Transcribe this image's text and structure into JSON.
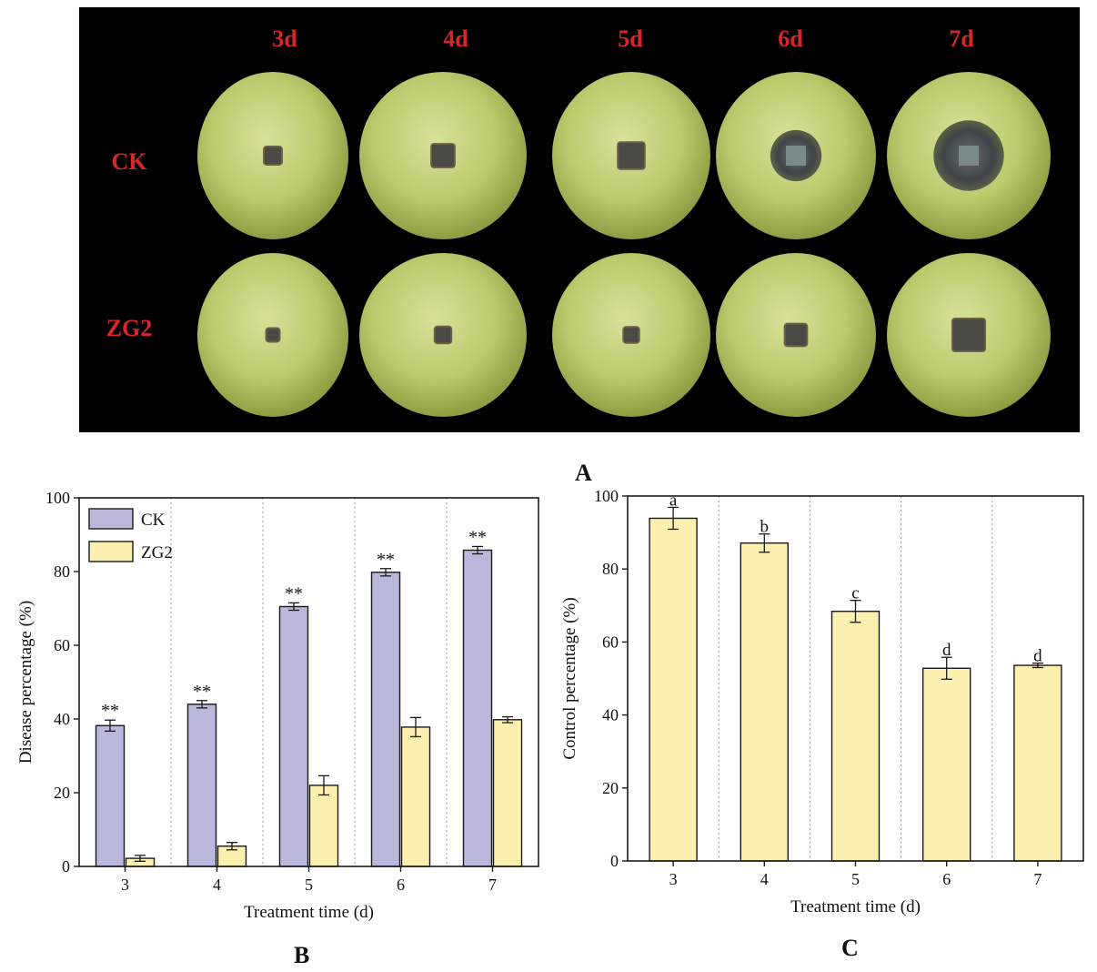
{
  "panel_a": {
    "letter": "A",
    "columns": [
      "3d",
      "4d",
      "5d",
      "6d",
      "7d"
    ],
    "rows": [
      {
        "label": "CK",
        "lesion": [
          0.12,
          0.14,
          0.17,
          0.32,
          0.43
        ]
      },
      {
        "label": "ZG2",
        "lesion": [
          0.09,
          0.1,
          0.1,
          0.14,
          0.2
        ]
      }
    ],
    "label_color": "#d8262b"
  },
  "chart_data": [
    {
      "id": "B",
      "type": "bar",
      "panel_letter": "B",
      "categories": [
        "3",
        "4",
        "5",
        "6",
        "7"
      ],
      "series": [
        {
          "name": "CK",
          "values": [
            38.2,
            44.0,
            70.5,
            79.8,
            85.8
          ],
          "errors": [
            1.5,
            1.0,
            1.0,
            1.0,
            1.0
          ],
          "color": "#b9b7da"
        },
        {
          "name": "ZG2",
          "values": [
            2.2,
            5.5,
            22.0,
            37.8,
            39.8
          ],
          "errors": [
            0.8,
            1.0,
            2.6,
            2.6,
            0.8
          ],
          "color": "#fbf0b0"
        }
      ],
      "annotations": [
        "**",
        "**",
        "**",
        "**",
        "**"
      ],
      "xlabel": "Treatment time (d)",
      "ylabel": "Disease percentage (%)",
      "ylim": [
        0,
        100
      ],
      "yticks": [
        "0",
        "20",
        "40",
        "60",
        "80",
        "100"
      ],
      "legend": "top-left",
      "grid": "vertical dotted separators"
    },
    {
      "id": "C",
      "type": "bar",
      "panel_letter": "C",
      "categories": [
        "3",
        "4",
        "5",
        "6",
        "7"
      ],
      "series": [
        {
          "values": [
            93.9,
            87.1,
            68.4,
            52.8,
            53.6
          ],
          "errors": [
            3.0,
            2.5,
            3.0,
            3.0,
            0.6
          ],
          "color": "#fbf0b0"
        }
      ],
      "annotations": [
        "a",
        "b",
        "c",
        "d",
        "d"
      ],
      "xlabel": "Treatment time (d)",
      "ylabel": "Control percentage (%)",
      "ylim": [
        0,
        100
      ],
      "yticks": [
        "0",
        "20",
        "40",
        "60",
        "80",
        "100"
      ],
      "grid": "vertical dotted separators"
    }
  ]
}
